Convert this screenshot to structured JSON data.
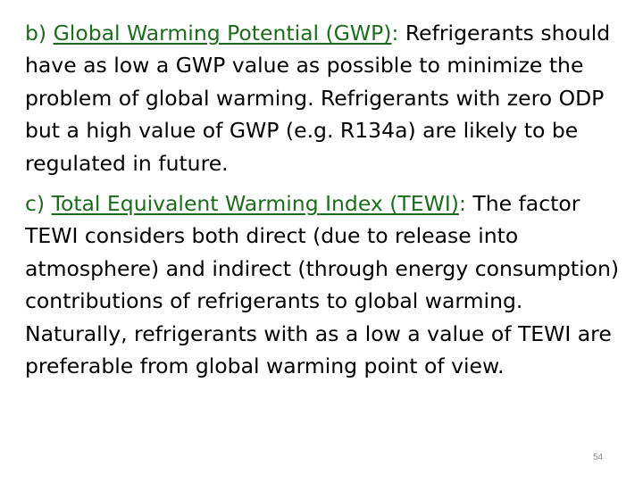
{
  "paragraphs": [
    {
      "label": "b)",
      "term": "Global Warming Potential (GWP)",
      "colon": ":",
      "text": "Refrigerants should have as low a GWP value as possible to minimize the problem of global warming. Refrigerants with zero ODP but a high value of GWP (e.g. R134a) are likely to be regulated in future."
    },
    {
      "label": "c)",
      "term": "Total Equivalent Warming Index (TEWI)",
      "colon": ":",
      "text": "The factor TEWI considers both direct (due to release into atmosphere) and indirect (through energy consumption) contributions of refrigerants to global warming. Naturally, refrigerants with as a low a value of TEWI are preferable from global warming point of view."
    }
  ],
  "page_number": "54",
  "colors": {
    "accent": "#1d6b1d",
    "text": "#000000",
    "page_number": "#8a8a8a"
  }
}
